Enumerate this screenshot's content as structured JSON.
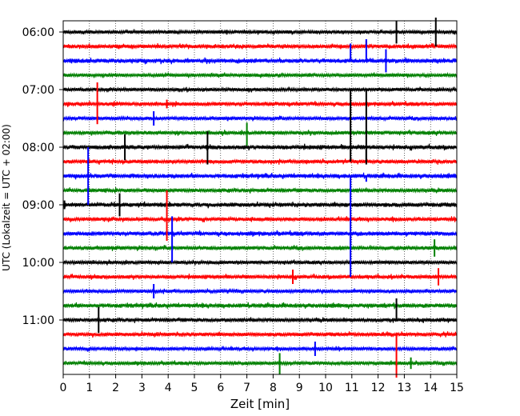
{
  "chart_data": {
    "type": "line",
    "subtype": "helicorder",
    "xlabel": "Zeit  [min]",
    "ylabel": "UTC (Lokalzeit = UTC + 02:00)",
    "xlim": [
      0,
      15
    ],
    "xticks": [
      "0",
      "1",
      "2",
      "3",
      "4",
      "5",
      "6",
      "7",
      "8",
      "9",
      "10",
      "11",
      "12",
      "13",
      "14",
      "15"
    ],
    "grid": "vertical dotted at each minute",
    "y_tick_labels": [
      "06:00",
      "07:00",
      "08:00",
      "09:00",
      "10:00",
      "11:00"
    ],
    "trace_interval_minutes": 15,
    "trace_start_times": [
      "06:00",
      "06:15",
      "06:30",
      "06:45",
      "07:00",
      "07:15",
      "07:30",
      "07:45",
      "08:00",
      "08:15",
      "08:30",
      "08:45",
      "09:00",
      "09:15",
      "09:30",
      "09:45",
      "10:00",
      "10:15",
      "10:30",
      "10:45",
      "11:00",
      "11:15",
      "11:30",
      "11:45"
    ],
    "series_colors": [
      "#000000",
      "#ff0000",
      "#0000ff",
      "#008000"
    ],
    "trace_noise": [
      0.5,
      0.55,
      0.6,
      0.5,
      0.5,
      0.55,
      0.5,
      0.55,
      0.6,
      0.55,
      0.6,
      0.55,
      0.6,
      0.55,
      0.6,
      0.55,
      0.5,
      0.55,
      0.5,
      0.6,
      0.55,
      0.55,
      0.5,
      0.5
    ],
    "spikes": [
      {
        "trace": 0,
        "t": 14.2,
        "up": 1.0,
        "down": 1.0
      },
      {
        "trace": 0,
        "t": 12.7,
        "up": 0.8,
        "down": 0.8
      },
      {
        "trace": 1,
        "t": 11.55,
        "up": 0.4,
        "down": 0.0
      },
      {
        "trace": 2,
        "t": 10.95,
        "up": 1.2,
        "down": 0.0
      },
      {
        "trace": 2,
        "t": 11.55,
        "up": 1.5,
        "down": 0.0
      },
      {
        "trace": 2,
        "t": 12.3,
        "up": 0.8,
        "down": 0.8
      },
      {
        "trace": 4,
        "t": 10.95,
        "up": 0.0,
        "down": 5.0
      },
      {
        "trace": 4,
        "t": 11.55,
        "up": 0.0,
        "down": 5.0
      },
      {
        "trace": 5,
        "t": 1.3,
        "up": 1.5,
        "down": 1.4
      },
      {
        "trace": 5,
        "t": 3.95,
        "up": 0.3,
        "down": 0.3
      },
      {
        "trace": 6,
        "t": 3.45,
        "up": 0.5,
        "down": 0.5
      },
      {
        "trace": 7,
        "t": 7.0,
        "up": 0.7,
        "down": 0.9
      },
      {
        "trace": 8,
        "t": 2.35,
        "up": 0.9,
        "down": 0.9
      },
      {
        "trace": 8,
        "t": 5.5,
        "up": 1.1,
        "down": 1.2
      },
      {
        "trace": 8,
        "t": 11.55,
        "up": 0.0,
        "down": 1.2
      },
      {
        "trace": 10,
        "t": 0.95,
        "up": 2.0,
        "down": 2.0
      },
      {
        "trace": 10,
        "t": 10.95,
        "up": 0.0,
        "down": 5.0
      },
      {
        "trace": 10,
        "t": 11.55,
        "up": 0.0,
        "down": 0.4
      },
      {
        "trace": 12,
        "t": 2.15,
        "up": 0.8,
        "down": 0.8
      },
      {
        "trace": 12,
        "t": 0.05,
        "up": 0.3,
        "down": 0.3
      },
      {
        "trace": 13,
        "t": 3.95,
        "up": 2.0,
        "down": 1.5
      },
      {
        "trace": 14,
        "t": 4.15,
        "up": 1.2,
        "down": 2.0
      },
      {
        "trace": 14,
        "t": 10.95,
        "up": 0.0,
        "down": 3.0
      },
      {
        "trace": 15,
        "t": 14.15,
        "up": 0.6,
        "down": 0.6
      },
      {
        "trace": 17,
        "t": 8.75,
        "up": 0.5,
        "down": 0.5
      },
      {
        "trace": 17,
        "t": 14.3,
        "up": 0.6,
        "down": 0.6
      },
      {
        "trace": 18,
        "t": 3.45,
        "up": 0.5,
        "down": 0.5
      },
      {
        "trace": 20,
        "t": 1.35,
        "up": 0.9,
        "down": 0.9
      },
      {
        "trace": 20,
        "t": 12.7,
        "up": 1.5,
        "down": 0.0
      },
      {
        "trace": 21,
        "t": 12.7,
        "up": 0.0,
        "down": 3.0
      },
      {
        "trace": 22,
        "t": 9.6,
        "up": 0.5,
        "down": 0.5
      },
      {
        "trace": 23,
        "t": 8.25,
        "up": 0.7,
        "down": 0.8
      },
      {
        "trace": 23,
        "t": 13.25,
        "up": 0.4,
        "down": 0.4
      }
    ]
  }
}
